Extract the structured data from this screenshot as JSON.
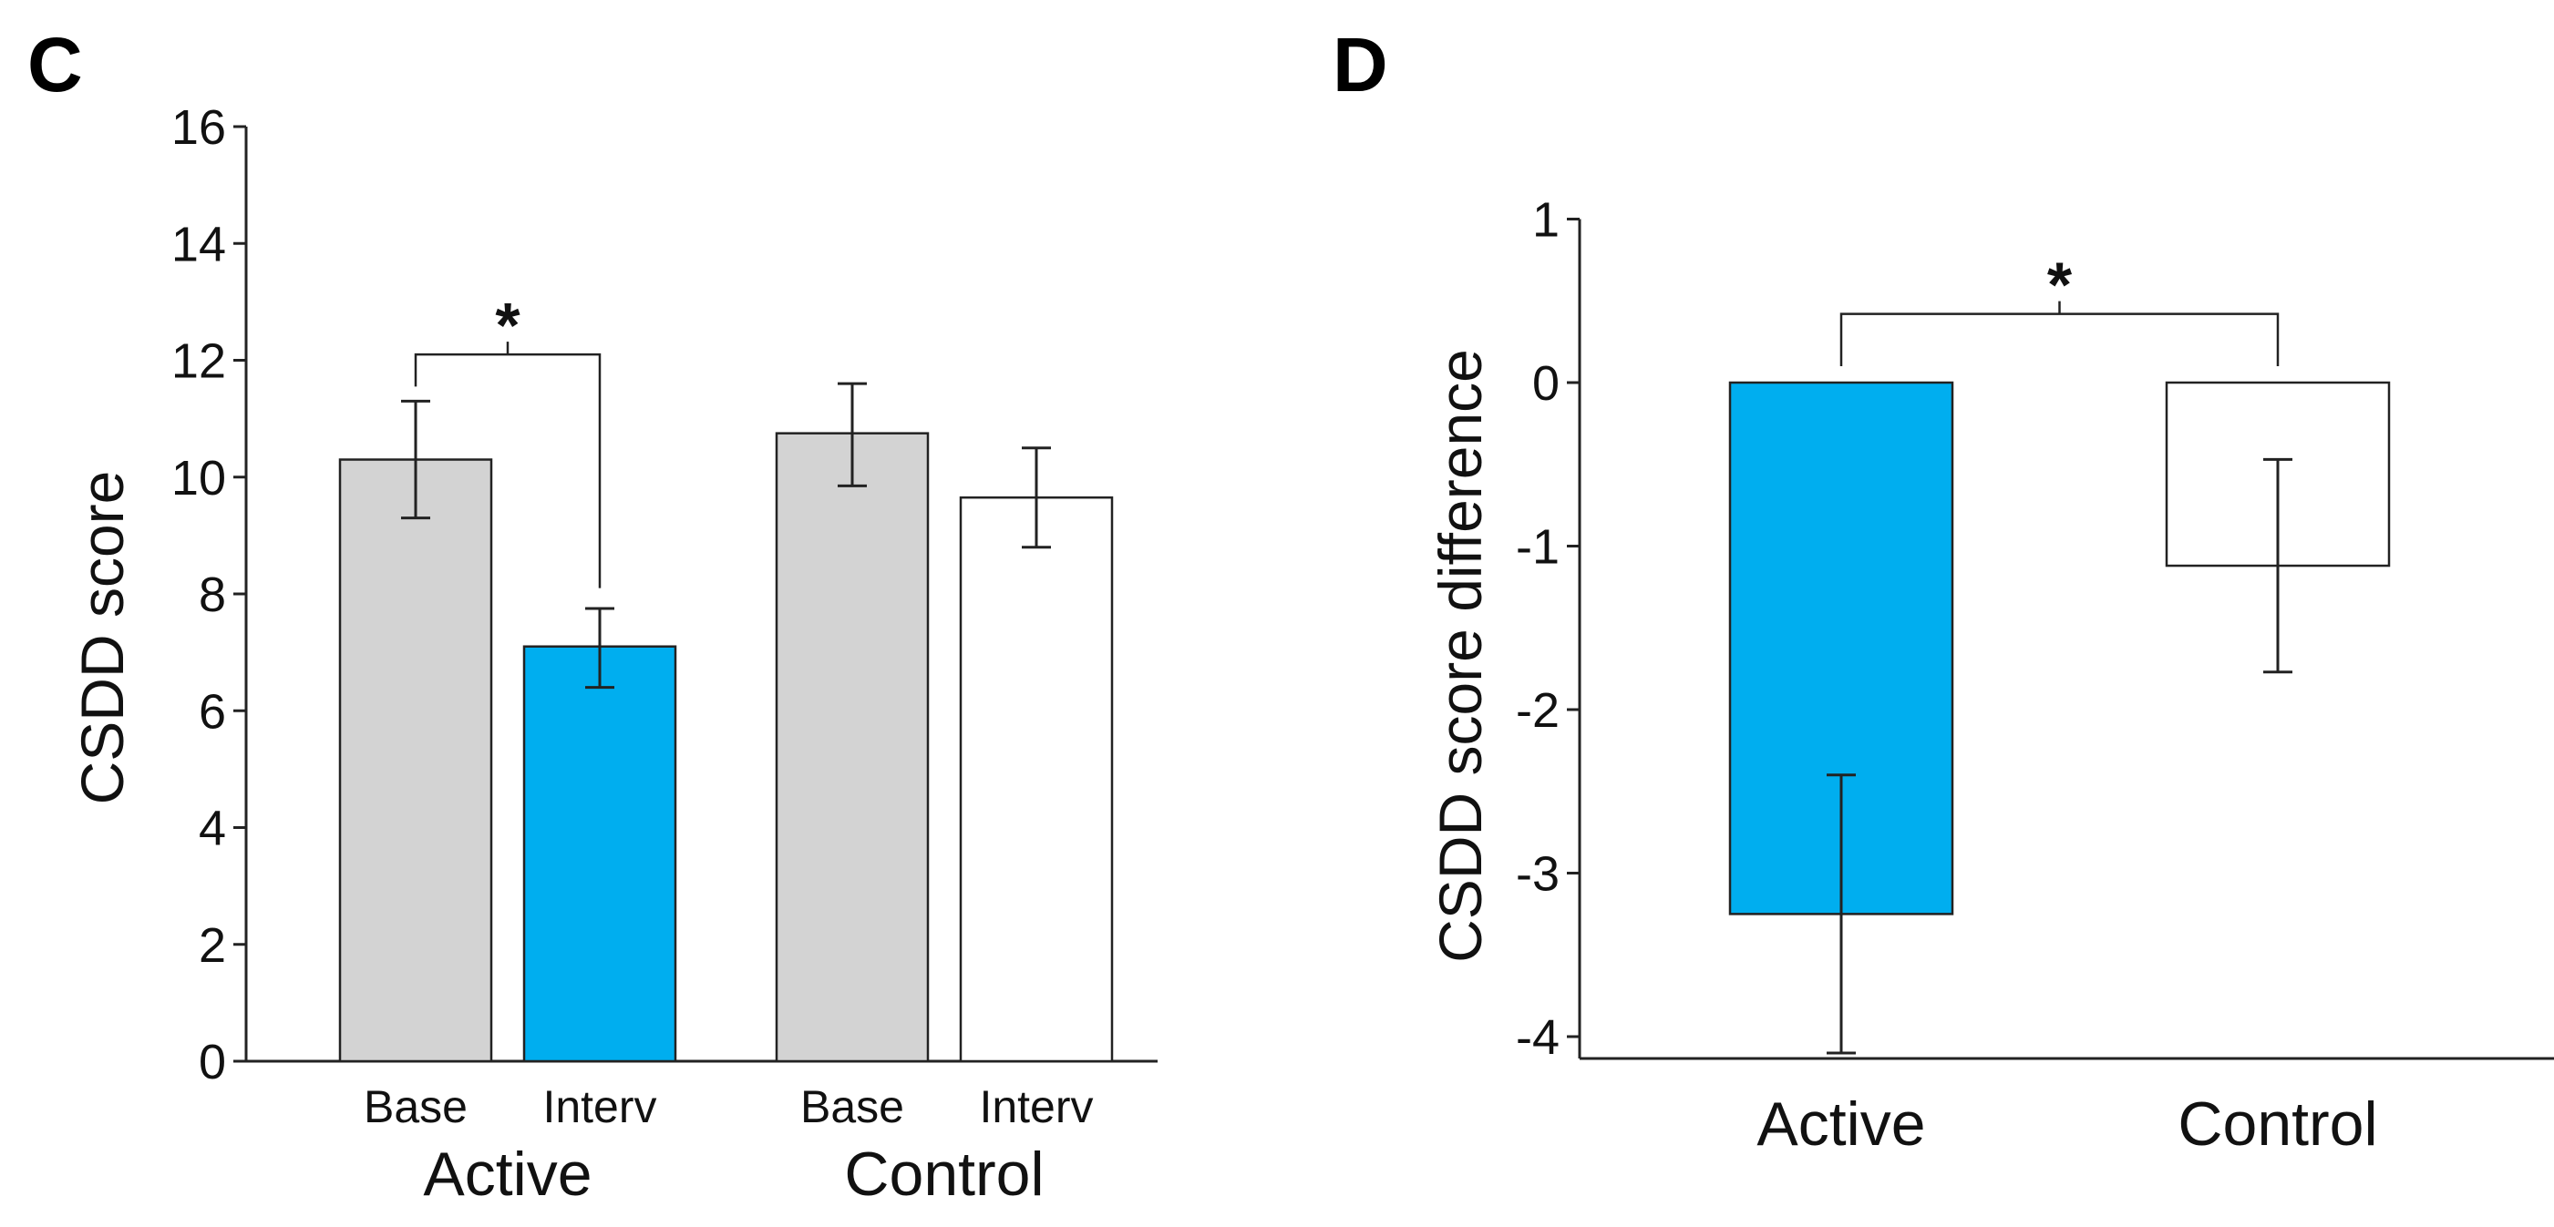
{
  "chart_data": [
    {
      "panel": "C",
      "type": "bar",
      "ylabel": "CSDD score",
      "xlabel": "",
      "ylim": [
        0,
        16
      ],
      "yticks": [
        0,
        2,
        4,
        6,
        8,
        10,
        12,
        14,
        16
      ],
      "groups": [
        "Active",
        "Control"
      ],
      "categories": [
        "Base",
        "Interv",
        "Base",
        "Interv"
      ],
      "bars": [
        {
          "group": "Active",
          "label": "Base",
          "value": 10.3,
          "err_low": 9.3,
          "err_high": 11.3,
          "color": "#d3d3d3"
        },
        {
          "group": "Active",
          "label": "Interv",
          "value": 7.1,
          "err_low": 6.4,
          "err_high": 7.75,
          "color": "#00aeef"
        },
        {
          "group": "Control",
          "label": "Base",
          "value": 10.75,
          "err_low": 9.85,
          "err_high": 11.6,
          "color": "#d3d3d3"
        },
        {
          "group": "Control",
          "label": "Interv",
          "value": 9.65,
          "err_low": 8.8,
          "err_high": 10.5,
          "color": "#ffffff"
        }
      ],
      "significance": {
        "between": [
          0,
          1
        ],
        "label": "*"
      }
    },
    {
      "panel": "D",
      "type": "bar",
      "ylabel": "CSDD score difference",
      "xlabel": "",
      "ylim": [
        -4.3,
        1
      ],
      "yticks": [
        -4,
        -3,
        -2,
        -1,
        0,
        1
      ],
      "categories": [
        "Active",
        "Control"
      ],
      "bars": [
        {
          "label": "Active",
          "value": -3.25,
          "err_low": -4.1,
          "err_high": -2.4,
          "color": "#00aeef"
        },
        {
          "label": "Control",
          "value": -1.12,
          "err_low": -1.77,
          "err_high": -0.47,
          "color": "#ffffff"
        }
      ],
      "significance": {
        "between": [
          0,
          1
        ],
        "label": "*"
      }
    }
  ]
}
